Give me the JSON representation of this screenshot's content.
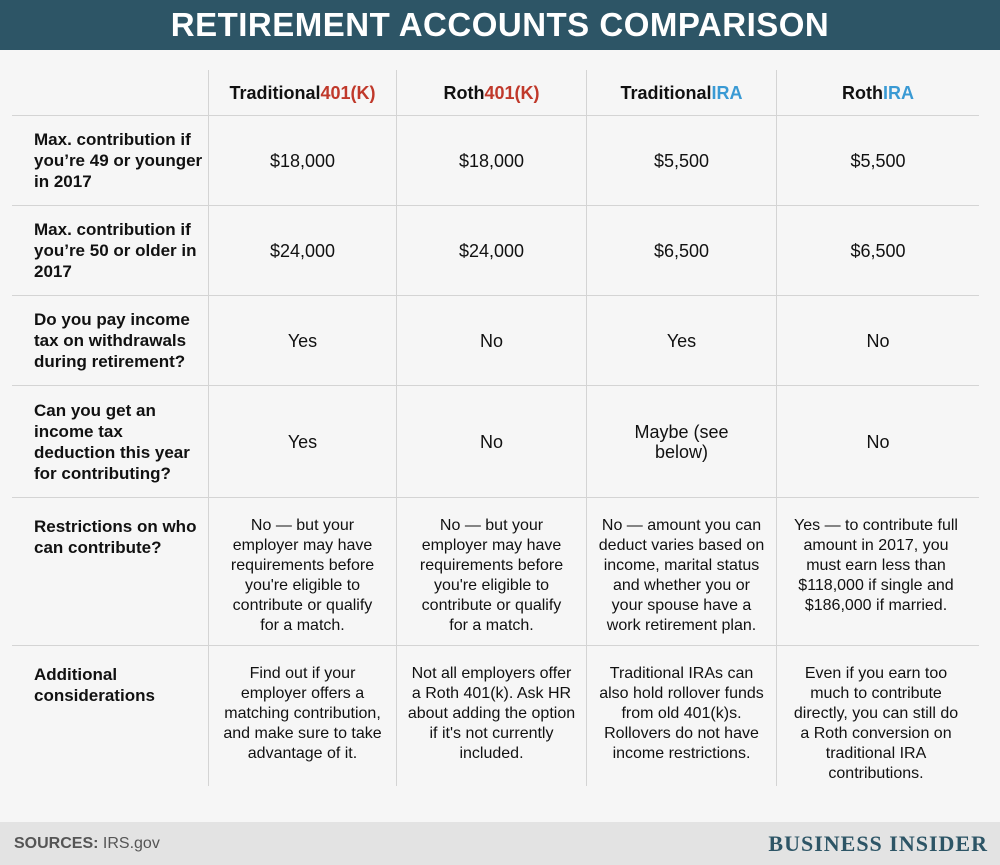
{
  "title": "RETIREMENT ACCOUNTS COMPARISON",
  "columns": [
    {
      "prefix": "Traditional ",
      "highlight": "401(K)",
      "color": "#c0392b"
    },
    {
      "prefix": "Roth ",
      "highlight": "401(K)",
      "color": "#c0392b"
    },
    {
      "prefix": "Traditional ",
      "highlight": "IRA",
      "color": "#3a9ad4"
    },
    {
      "prefix": "Roth ",
      "highlight": "IRA",
      "color": "#3a9ad4"
    }
  ],
  "rows": [
    {
      "label": "Max. contribution if you’re 49 or younger in 2017",
      "cells": [
        "$18,000",
        "$18,000",
        "$5,500",
        "$5,500"
      ]
    },
    {
      "label": "Max. contribution if you’re 50 or older in 2017",
      "cells": [
        "$24,000",
        "$24,000",
        "$6,500",
        "$6,500"
      ]
    },
    {
      "label": "Do you pay income tax on withdrawals during retirement?",
      "cells": [
        "Yes",
        "No",
        "Yes",
        "No"
      ]
    },
    {
      "label": "Can you get an income tax deduction this year for contributing?",
      "cells": [
        "Yes",
        "No",
        "Maybe (see below)",
        "No"
      ]
    },
    {
      "label": "Restrictions on who can contribute?",
      "cells": [
        "No — but your employer may have requirements before you're eligible to contribute or qualify for a match.",
        "No — but your employer may have requirements before you're eligible to contribute or qualify for a match.",
        "No — amount you can deduct varies based on income, marital status and whether you or your spouse have a work retirement plan.",
        "Yes — to contribute full amount in 2017, you must earn less than $118,000 if single and $186,000 if married."
      ]
    },
    {
      "label": "Additional considerations",
      "cells": [
        "Find out if your employer offers a matching contribution, and make sure to take advantage of it.",
        "Not all employers offer a Roth 401(k). Ask HR about adding the option if it's not currently included.",
        "Traditional IRAs can also hold rollover funds from old 401(k)s. Rollovers do not have income restrictions.",
        "Even if you earn too much to contribute directly, you can still do a Roth conversion on traditional IRA contributions."
      ]
    }
  ],
  "footer": {
    "sources_label": "SOURCES:",
    "sources_value": " IRS.gov",
    "brand": "BUSINESS INSIDER"
  }
}
